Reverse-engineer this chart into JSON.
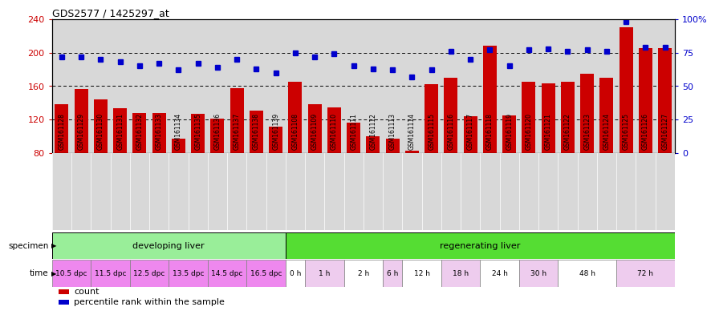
{
  "title": "GDS2577 / 1425297_at",
  "samples": [
    "GSM161128",
    "GSM161129",
    "GSM161130",
    "GSM161131",
    "GSM161132",
    "GSM161133",
    "GSM161134",
    "GSM161135",
    "GSM161136",
    "GSM161137",
    "GSM161138",
    "GSM161139",
    "GSM161108",
    "GSM161109",
    "GSM161110",
    "GSM161111",
    "GSM161112",
    "GSM161113",
    "GSM161114",
    "GSM161115",
    "GSM161116",
    "GSM161117",
    "GSM161118",
    "GSM161119",
    "GSM161120",
    "GSM161121",
    "GSM161122",
    "GSM161123",
    "GSM161124",
    "GSM161125",
    "GSM161126",
    "GSM161127"
  ],
  "counts": [
    138,
    157,
    144,
    134,
    128,
    128,
    97,
    127,
    121,
    158,
    131,
    112,
    165,
    138,
    135,
    116,
    100,
    97,
    83,
    162,
    170,
    124,
    208,
    125,
    165,
    163,
    165,
    175,
    170,
    230,
    205,
    205
  ],
  "percentiles": [
    72,
    72,
    70,
    68,
    65,
    67,
    62,
    67,
    64,
    70,
    63,
    60,
    75,
    72,
    74,
    65,
    63,
    62,
    57,
    62,
    76,
    70,
    77,
    65,
    77,
    78,
    76,
    77,
    76,
    98,
    79,
    79
  ],
  "ylim_left": [
    80,
    240
  ],
  "ylim_right": [
    0,
    100
  ],
  "yticks_left": [
    80,
    120,
    160,
    200,
    240
  ],
  "yticks_right": [
    0,
    25,
    50,
    75,
    100
  ],
  "ytick_labels_right": [
    "0",
    "25",
    "50",
    "75",
    "100%"
  ],
  "bar_color": "#cc0000",
  "dot_color": "#0000cc",
  "bg_color": "#d8d8d8",
  "specimen_groups": [
    {
      "label": "developing liver",
      "color": "#99ee99",
      "start": 0,
      "end": 12
    },
    {
      "label": "regenerating liver",
      "color": "#55dd33",
      "start": 12,
      "end": 32
    }
  ],
  "time_groups": [
    {
      "label": "10.5 dpc",
      "color": "#ee88ee",
      "start": 0,
      "end": 2
    },
    {
      "label": "11.5 dpc",
      "color": "#ee88ee",
      "start": 2,
      "end": 4
    },
    {
      "label": "12.5 dpc",
      "color": "#ee88ee",
      "start": 4,
      "end": 6
    },
    {
      "label": "13.5 dpc",
      "color": "#ee88ee",
      "start": 6,
      "end": 8
    },
    {
      "label": "14.5 dpc",
      "color": "#ee88ee",
      "start": 8,
      "end": 10
    },
    {
      "label": "16.5 dpc",
      "color": "#ee88ee",
      "start": 10,
      "end": 12
    },
    {
      "label": "0 h",
      "color": "#ffffff",
      "start": 12,
      "end": 13
    },
    {
      "label": "1 h",
      "color": "#eeccee",
      "start": 13,
      "end": 15
    },
    {
      "label": "2 h",
      "color": "#ffffff",
      "start": 15,
      "end": 17
    },
    {
      "label": "6 h",
      "color": "#eeccee",
      "start": 17,
      "end": 18
    },
    {
      "label": "12 h",
      "color": "#ffffff",
      "start": 18,
      "end": 20
    },
    {
      "label": "18 h",
      "color": "#eeccee",
      "start": 20,
      "end": 22
    },
    {
      "label": "24 h",
      "color": "#ffffff",
      "start": 22,
      "end": 24
    },
    {
      "label": "30 h",
      "color": "#eeccee",
      "start": 24,
      "end": 26
    },
    {
      "label": "48 h",
      "color": "#ffffff",
      "start": 26,
      "end": 29
    },
    {
      "label": "72 h",
      "color": "#eeccee",
      "start": 29,
      "end": 32
    }
  ],
  "legend_items": [
    {
      "label": "count",
      "color": "#cc0000"
    },
    {
      "label": "percentile rank within the sample",
      "color": "#0000cc"
    }
  ]
}
